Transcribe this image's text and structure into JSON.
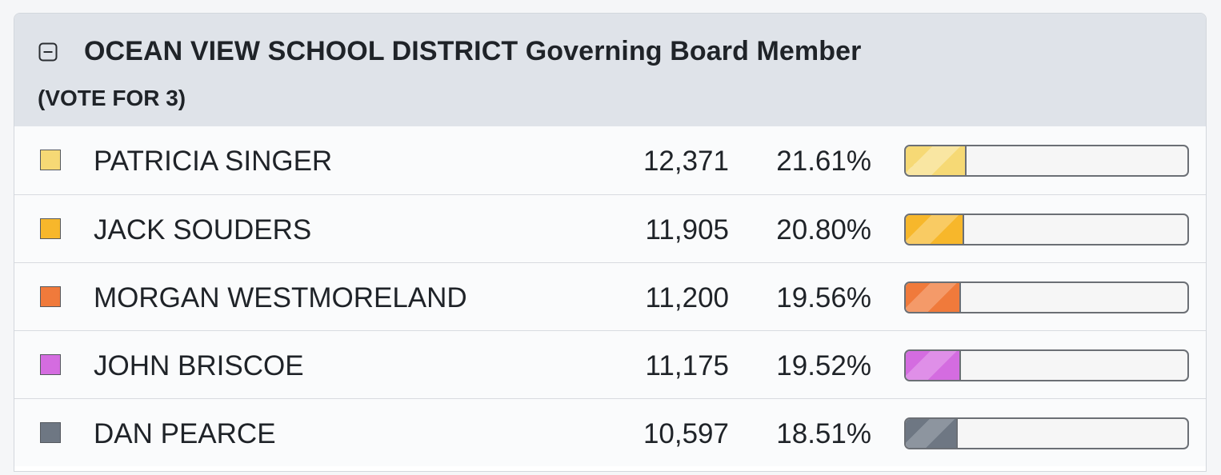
{
  "contest": {
    "title": "OCEAN VIEW SCHOOL DISTRICT Governing Board Member",
    "subtitle": "(VOTE FOR 3)",
    "collapse_icon": "minus-square-icon"
  },
  "candidates": [
    {
      "name": "PATRICIA SINGER",
      "votes": "12,371",
      "percent": "21.61%",
      "share": 0.2161,
      "color": "#f6d975",
      "stripe": "#f9e6a2"
    },
    {
      "name": "JACK SOUDERS",
      "votes": "11,905",
      "percent": "20.80%",
      "share": 0.208,
      "color": "#f7b72b",
      "stripe": "#f9cb63"
    },
    {
      "name": "MORGAN WESTMORELAND",
      "votes": "11,200",
      "percent": "19.56%",
      "share": 0.1956,
      "color": "#f07a3b",
      "stripe": "#f49a69"
    },
    {
      "name": "JOHN BRISCOE",
      "votes": "11,175",
      "percent": "19.52%",
      "share": 0.1952,
      "color": "#d46ce0",
      "stripe": "#df8fe8"
    },
    {
      "name": "DAN PEARCE",
      "votes": "10,597",
      "percent": "18.51%",
      "share": 0.1851,
      "color": "#6e7783",
      "stripe": "#8d959f"
    }
  ]
}
